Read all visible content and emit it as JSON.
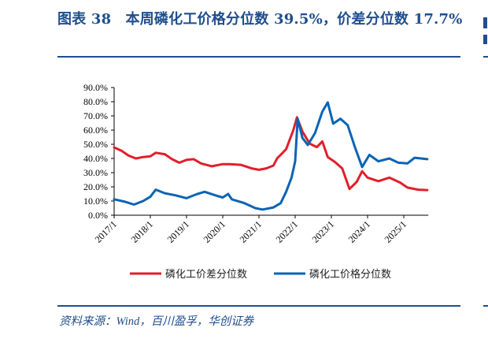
{
  "header": {
    "title": "图表 38　本周磷化工价格分位数 39.5%，价差分位数 17.7%"
  },
  "footer": {
    "source": "资料来源：Wind，百川盈孚，华创证券"
  },
  "colors": {
    "accent": "#1f4e8c",
    "spread_series": "#e0202a",
    "price_series": "#0a64b4"
  },
  "chart_data": {
    "type": "line",
    "title": "本周磷化工价格分位数 39.5%，价差分位数 17.7%",
    "xlabel": "",
    "ylabel": "",
    "ylim": [
      0,
      90
    ],
    "yticks": [
      "0.0%",
      "10.0%",
      "20.0%",
      "30.0%",
      "40.0%",
      "50.0%",
      "60.0%",
      "70.0%",
      "80.0%",
      "90.0%"
    ],
    "xticks": [
      "2017/1",
      "2018/1",
      "2019/1",
      "2020/1",
      "2021/1",
      "2022/1",
      "2023/1",
      "2024/1",
      "2025/1"
    ],
    "xrange": [
      2017.0,
      2025.68
    ],
    "legend_position": "bottom",
    "grid": false,
    "series": [
      {
        "name": "磷化工价差分位数",
        "color": "#e0202a",
        "x": [
          2017.0,
          2017.2,
          2017.4,
          2017.6,
          2017.8,
          2018.0,
          2018.15,
          2018.4,
          2018.6,
          2018.8,
          2019.0,
          2019.2,
          2019.4,
          2019.7,
          2020.0,
          2020.2,
          2020.5,
          2020.8,
          2021.0,
          2021.2,
          2021.4,
          2021.5,
          2021.75,
          2021.95,
          2022.05,
          2022.2,
          2022.4,
          2022.6,
          2022.75,
          2022.9,
          2023.1,
          2023.3,
          2023.5,
          2023.7,
          2023.85,
          2024.0,
          2024.3,
          2024.6,
          2024.9,
          2025.1,
          2025.4,
          2025.65
        ],
        "values": [
          47.8,
          45.5,
          42.0,
          40.0,
          41.0,
          41.5,
          44.0,
          43.0,
          39.5,
          37.0,
          39.0,
          39.5,
          36.5,
          34.5,
          36.0,
          36.0,
          35.5,
          33.0,
          32.0,
          33.0,
          35.0,
          40.0,
          46.5,
          60.0,
          69.0,
          59.0,
          50.5,
          48.0,
          52.0,
          41.0,
          37.5,
          33.0,
          18.5,
          23.5,
          31.0,
          26.5,
          24.0,
          26.5,
          23.0,
          19.5,
          18.0,
          17.7
        ]
      },
      {
        "name": "磷化工价格分位数",
        "color": "#0a64b4",
        "x": [
          2017.0,
          2017.3,
          2017.55,
          2017.8,
          2018.0,
          2018.15,
          2018.4,
          2018.7,
          2019.0,
          2019.3,
          2019.5,
          2019.8,
          2020.0,
          2020.15,
          2020.25,
          2020.6,
          2020.9,
          2021.1,
          2021.4,
          2021.6,
          2021.75,
          2021.9,
          2022.0,
          2022.07,
          2022.2,
          2022.35,
          2022.55,
          2022.75,
          2022.9,
          2023.05,
          2023.25,
          2023.45,
          2023.65,
          2023.85,
          2024.05,
          2024.3,
          2024.6,
          2024.85,
          2025.1,
          2025.3,
          2025.65
        ],
        "values": [
          11.2,
          9.5,
          7.5,
          10.0,
          13.0,
          18.0,
          15.5,
          14.0,
          12.0,
          15.0,
          16.5,
          14.0,
          12.5,
          15.0,
          11.2,
          8.5,
          5.0,
          4.0,
          5.5,
          8.5,
          16.5,
          26.5,
          38.0,
          68.0,
          54.5,
          49.5,
          58.0,
          73.0,
          79.5,
          64.5,
          68.0,
          63.5,
          48.0,
          34.0,
          42.5,
          38.0,
          40.0,
          37.0,
          36.5,
          40.5,
          39.5
        ]
      }
    ],
    "annotations": {
      "latest_price_percentile": "39.5%",
      "latest_spread_percentile": "17.7%"
    }
  }
}
